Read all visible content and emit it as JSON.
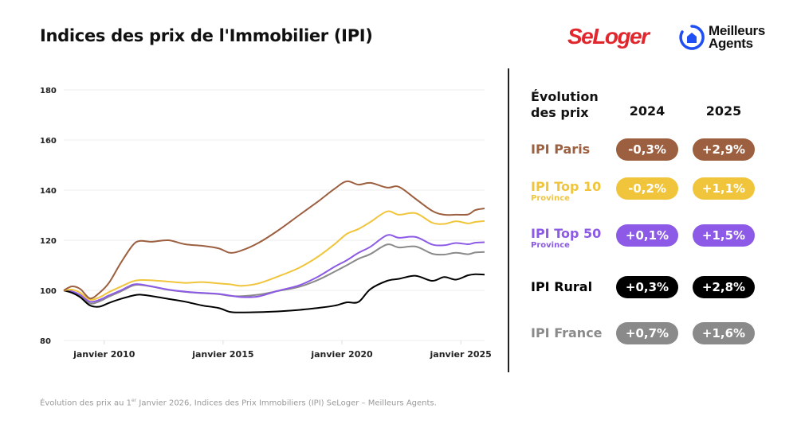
{
  "header": {
    "title": "Indices des prix de l'Immobilier (IPI)",
    "logo_seloger": "SeLoger",
    "logo_ma_line1": "Meilleurs",
    "logo_ma_line2": "Agents"
  },
  "panel": {
    "heading_line1": "Évolution",
    "heading_line2": "des prix",
    "year1": "2024",
    "year2": "2025",
    "rows": [
      {
        "label": "IPI Paris",
        "sub": "",
        "color": "#9c5f3f",
        "v2024": "-0,3%",
        "v2025": "+2,9%"
      },
      {
        "label": "IPI Top 10",
        "sub": "Province",
        "color": "#f0c53c",
        "v2024": "-0,2%",
        "v2025": "+1,1%"
      },
      {
        "label": "IPI Top 50",
        "sub": "Province",
        "color": "#8c5ae6",
        "v2024": "+0,1%",
        "v2025": "+1,5%"
      },
      {
        "label": "IPI Rural",
        "sub": "",
        "color": "#000000",
        "v2024": "+0,3%",
        "v2025": "+2,8%"
      },
      {
        "label": "IPI France",
        "sub": "",
        "color": "#8a8a8a",
        "v2024": "+0,7%",
        "v2025": "+1,6%"
      }
    ]
  },
  "footer": {
    "text_before": "Évolution des prix au 1",
    "sup": "er",
    "text_after": " Janvier 2026, Indices des Prix Immobiliers (IPI) SeLoger – Meilleurs Agents."
  },
  "chart_data": {
    "type": "line",
    "title": "Indices des prix de l'Immobilier (IPI)",
    "xlabel": "",
    "ylabel": "",
    "ylim": [
      80,
      180
    ],
    "yticks": [
      80,
      100,
      120,
      140,
      160,
      180
    ],
    "xlim": [
      2008.3,
      2026.0
    ],
    "xticks": [
      {
        "value": 2010,
        "label": "janvier 2010"
      },
      {
        "value": 2015,
        "label": "janvier 2015"
      },
      {
        "value": 2020,
        "label": "janvier 2020"
      },
      {
        "value": 2025,
        "label": "janvier 2025"
      }
    ],
    "grid": true,
    "x": [
      2008.3,
      2008.65,
      2009.0,
      2009.4,
      2009.8,
      2010.2,
      2010.7,
      2011.2,
      2011.5,
      2012.0,
      2012.7,
      2013.4,
      2014.1,
      2014.8,
      2015.3,
      2015.8,
      2016.5,
      2017.3,
      2018.2,
      2019.0,
      2019.7,
      2020.2,
      2020.7,
      2021.2,
      2021.9,
      2022.4,
      2023.1,
      2023.8,
      2024.3,
      2024.8,
      2025.3,
      2025.6,
      2026.0
    ],
    "series": [
      {
        "name": "IPI Paris",
        "color": "#9c5f3f",
        "values": [
          100,
          101.6,
          100.5,
          96.8,
          99,
          103,
          111,
          118,
          119.7,
          119.4,
          120,
          118.4,
          117.8,
          116.8,
          115,
          116,
          119,
          123.8,
          130,
          135.5,
          140.6,
          143.5,
          142.2,
          142.9,
          141,
          141.3,
          136.5,
          131.7,
          130.2,
          130.2,
          130.3,
          132,
          132.7
        ]
      },
      {
        "name": "IPI Top 10 Province",
        "color": "#f0c53c",
        "values": [
          100,
          100.3,
          99,
          96.3,
          97.2,
          99.3,
          101.5,
          103.6,
          104.1,
          104,
          103.5,
          103,
          103.3,
          102.8,
          102.4,
          101.8,
          102.8,
          105.5,
          109,
          113.5,
          118.5,
          122.5,
          124.5,
          127.3,
          131.5,
          130.2,
          130.8,
          127,
          126.5,
          127.6,
          126.7,
          127.3,
          127.7
        ]
      },
      {
        "name": "IPI Top 50 Province",
        "color": "#8c5ae6",
        "values": [
          100,
          99.6,
          98.2,
          95.5,
          96.2,
          98,
          100,
          102.3,
          102.4,
          101.6,
          100.3,
          99.5,
          99,
          98.6,
          97.9,
          97.3,
          97.6,
          99.8,
          102,
          105.5,
          109.5,
          112,
          115,
          117.4,
          122,
          121,
          121.3,
          118.3,
          118,
          118.9,
          118.4,
          119,
          119.2
        ]
      },
      {
        "name": "IPI Rural",
        "color": "#000000",
        "values": [
          100,
          99,
          97.2,
          94,
          93.5,
          95,
          96.6,
          97.9,
          98.3,
          97.7,
          96.6,
          95.5,
          94,
          93,
          91.4,
          91.2,
          91.3,
          91.6,
          92.2,
          93,
          93.9,
          95.2,
          95.4,
          100.5,
          103.8,
          104.6,
          105.8,
          103.8,
          105.3,
          104.3,
          106,
          106.4,
          106.3
        ]
      },
      {
        "name": "IPI France",
        "color": "#8a8a8a",
        "values": [
          100,
          99.6,
          97.8,
          94.8,
          95.6,
          97.5,
          99.6,
          101.9,
          102.2,
          101.5,
          100.2,
          99.4,
          98.9,
          98.5,
          97.8,
          97.7,
          98.3,
          99.7,
          101.4,
          104.2,
          107.5,
          110,
          112.6,
          114.5,
          118.3,
          117.1,
          117.5,
          114.6,
          114.3,
          115,
          114.4,
          115.1,
          115.3
        ]
      }
    ]
  }
}
